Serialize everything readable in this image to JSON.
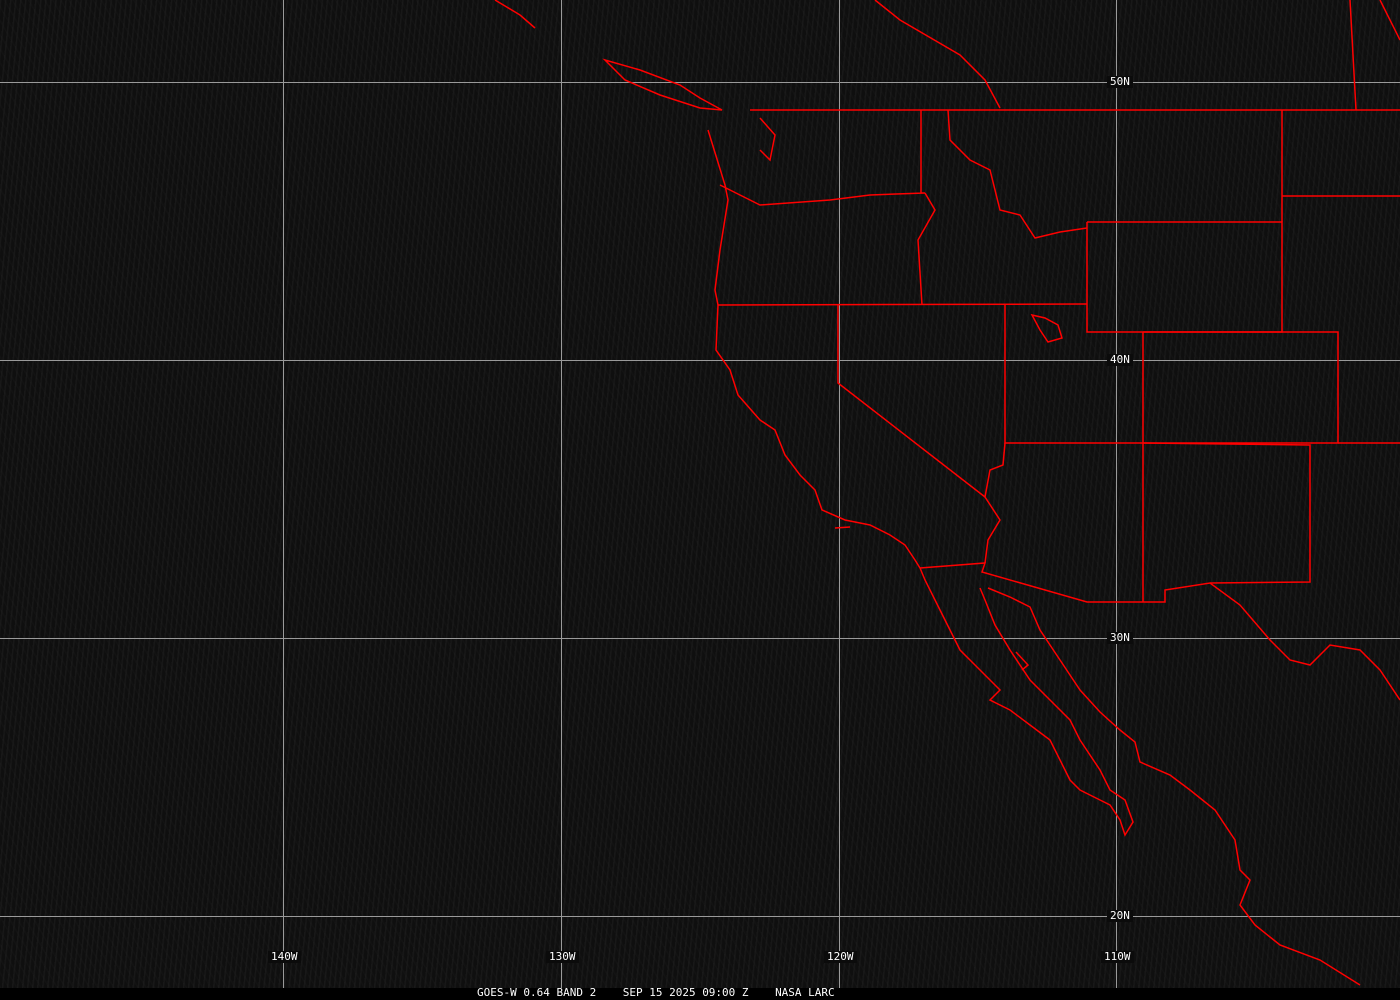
{
  "map": {
    "latitude_labels": [
      "50N",
      "40N",
      "30N",
      "20N"
    ],
    "longitude_labels": [
      "140W",
      "130W",
      "120W",
      "110W"
    ],
    "colors": {
      "boundaries": "#ff0000",
      "grid": "#9a9a9a",
      "background": "#0f0f0f",
      "text": "#ffffff"
    }
  },
  "caption": {
    "product": "GOES-W 0.64 BAND 2",
    "datetime": "SEP 15 2025 09:00 Z",
    "source": "NASA LARC"
  }
}
